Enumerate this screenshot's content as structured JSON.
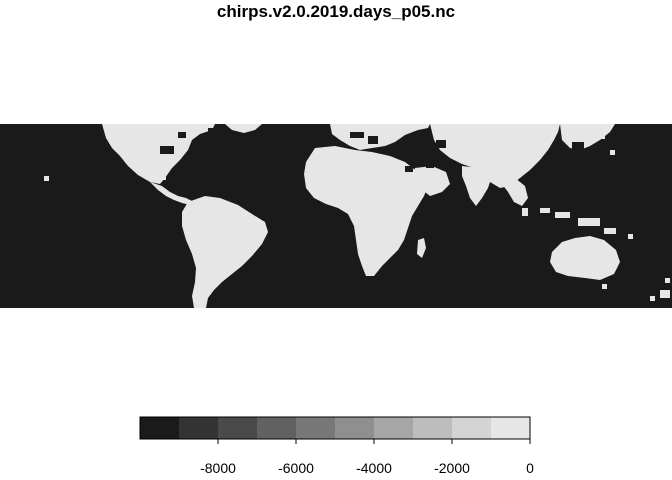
{
  "title": "chirps.v2.0.2019.days_p05.nc",
  "colors": {
    "ocean": "#1a1a1a",
    "land": "#e6e6e6"
  },
  "legend": {
    "colors": [
      "#1a1a1a",
      "#333333",
      "#4a4a4a",
      "#616161",
      "#787878",
      "#8f8f8f",
      "#a6a6a6",
      "#bdbdbd",
      "#d4d4d4",
      "#e6e6e6"
    ],
    "tick_labels": [
      "-8000",
      "-6000",
      "-4000",
      "-2000",
      "0"
    ],
    "range": [
      -10000,
      0
    ]
  }
}
